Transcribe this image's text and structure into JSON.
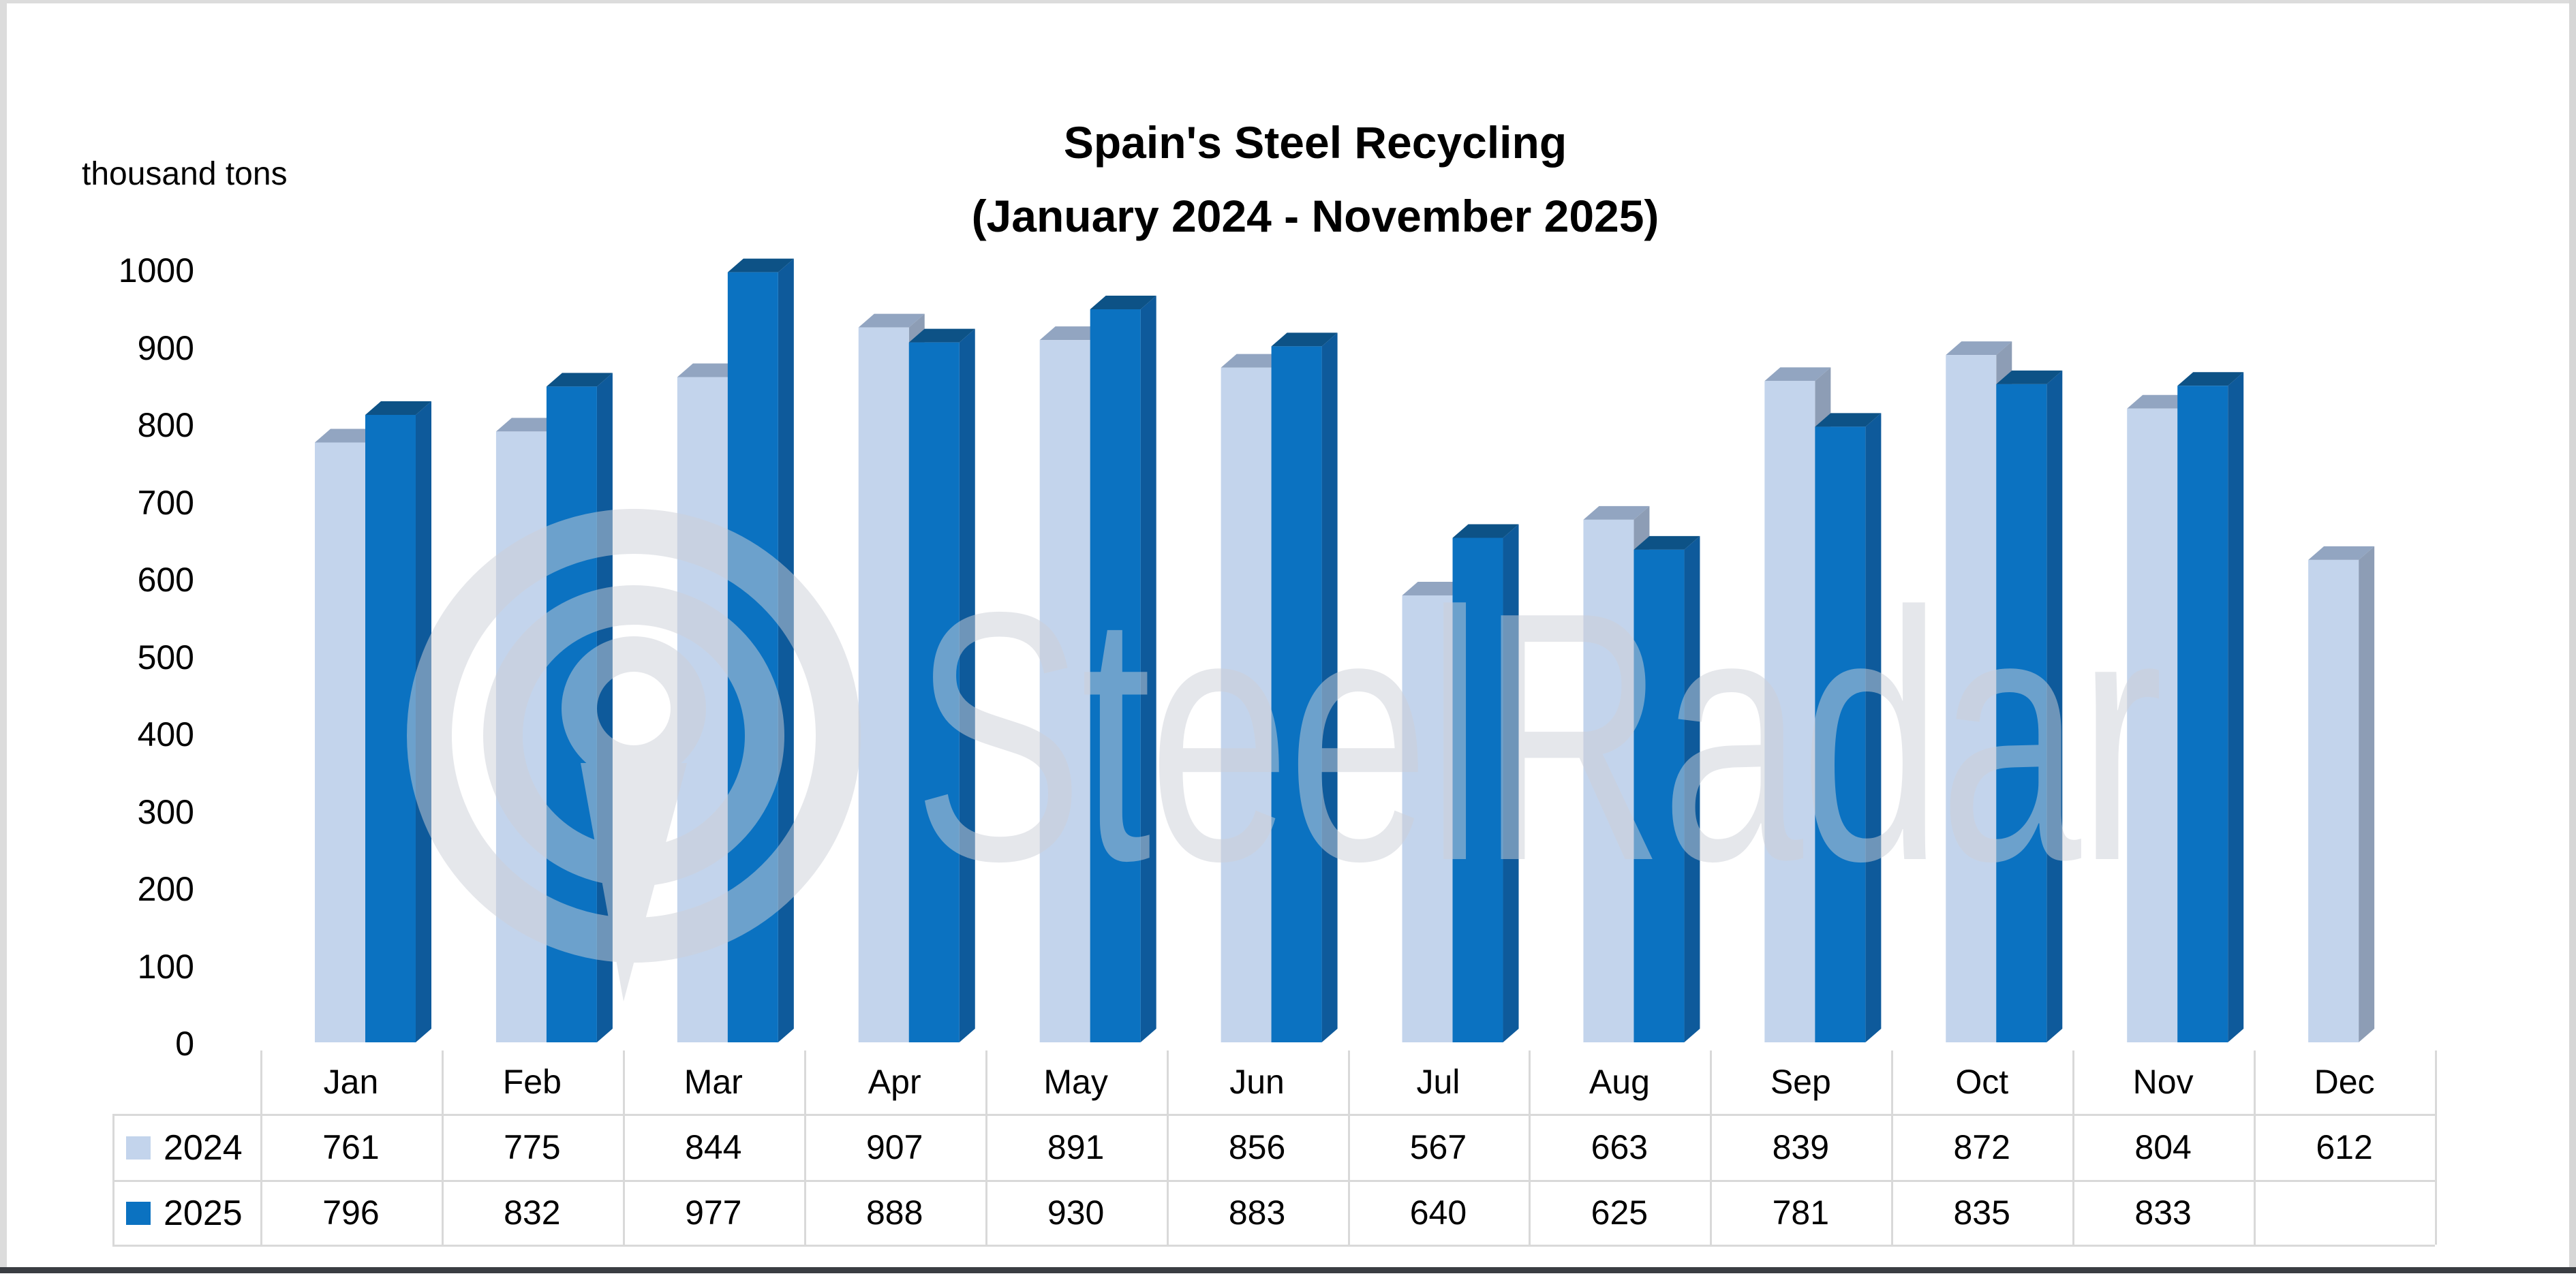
{
  "title": {
    "line1": "Spain's Steel Recycling",
    "line2": "(January 2024 - November 2025)"
  },
  "y_axis": {
    "unit_label": "thousand tons",
    "tick_min": 0,
    "tick_max": 1000,
    "tick_step": 100
  },
  "watermark": {
    "text": "SteelRadar",
    "icon": "radar-pin-icon",
    "color": "#cdd0d8"
  },
  "table": {
    "row_headers": [
      "2024",
      "2025"
    ],
    "empty_cells": [
      "Dec 2025"
    ]
  },
  "chart_data": {
    "type": "bar",
    "style": "3d-column",
    "title": "Spain's Steel Recycling (January 2024 - November 2025)",
    "ylabel": "thousand tons",
    "ylim": [
      0,
      1000
    ],
    "grid": false,
    "legend_position": "data-table-left",
    "categories": [
      "Jan",
      "Feb",
      "Mar",
      "Apr",
      "May",
      "Jun",
      "Jul",
      "Aug",
      "Sep",
      "Oct",
      "Nov",
      "Dec"
    ],
    "series": [
      {
        "name": "2024",
        "color": "#c3d4ec",
        "color_top": "#92a5c1",
        "color_side": "#8d9db5",
        "values": [
          761,
          775,
          844,
          907,
          891,
          856,
          567,
          663,
          839,
          872,
          804,
          612
        ]
      },
      {
        "name": "2025",
        "color": "#0b72c1",
        "color_top": "#0d5286",
        "color_side": "#0e5a9b",
        "values": [
          796,
          832,
          977,
          888,
          930,
          883,
          640,
          625,
          781,
          835,
          833,
          null
        ]
      }
    ]
  }
}
